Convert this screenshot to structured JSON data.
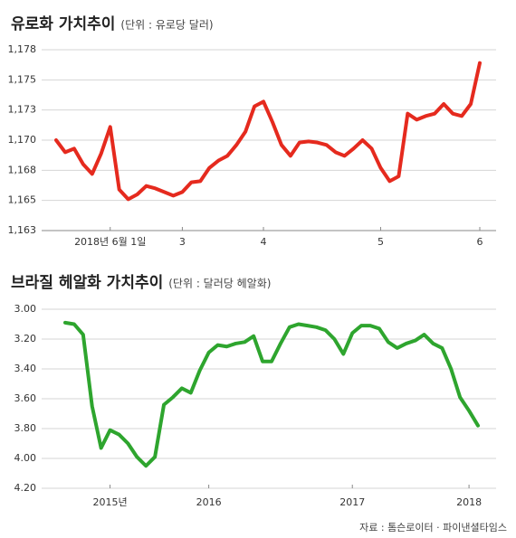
{
  "chart_data": [
    {
      "type": "line",
      "title": "유로화 가치추이",
      "subtitle": "(단위 : 유로당 달러)",
      "categories": [
        null,
        null,
        null,
        null,
        null,
        null,
        "2018년 6월 1일",
        null,
        null,
        null,
        null,
        null,
        null,
        null,
        "3",
        null,
        null,
        null,
        null,
        null,
        null,
        null,
        null,
        "4",
        null,
        null,
        null,
        null,
        null,
        null,
        null,
        null,
        null,
        null,
        null,
        null,
        "5",
        null,
        null,
        null,
        null,
        null,
        null,
        null,
        null,
        null,
        null,
        "6"
      ],
      "values": [
        1.17,
        1.169,
        1.1693,
        1.168,
        1.1672,
        1.1689,
        1.1711,
        1.1659,
        1.1651,
        1.1655,
        1.1662,
        1.166,
        1.1657,
        1.1654,
        1.1657,
        1.1665,
        1.1666,
        1.1677,
        1.1683,
        1.1687,
        1.1696,
        1.1707,
        1.1728,
        1.1732,
        1.1715,
        1.1696,
        1.1687,
        1.1698,
        1.1699,
        1.1698,
        1.1696,
        1.169,
        1.1687,
        1.1693,
        1.17,
        1.1693,
        1.1677,
        1.1666,
        1.167,
        1.1722,
        1.1717,
        1.172,
        1.1722,
        1.173,
        1.1722,
        1.172,
        1.173,
        1.1764
      ],
      "color": "#e52a1e",
      "ylim": [
        1.1625,
        1.1775
      ],
      "yticks": [
        {
          "value": 1.1625,
          "label": "1,163"
        },
        {
          "value": 1.165,
          "label": "1,165"
        },
        {
          "value": 1.1675,
          "label": "1,168"
        },
        {
          "value": 1.17,
          "label": "1,170"
        },
        {
          "value": 1.1725,
          "label": "1,173"
        },
        {
          "value": 1.175,
          "label": "1,175"
        },
        {
          "value": 1.1775,
          "label": "1,178"
        }
      ],
      "grid": true
    },
    {
      "type": "line",
      "title": "브라질 헤알화 가치추이",
      "subtitle": "(단위 : 달러당 헤알화)",
      "categories": [
        null,
        null,
        null,
        null,
        null,
        "2015년",
        null,
        null,
        null,
        null,
        null,
        null,
        null,
        null,
        null,
        null,
        "2016",
        null,
        null,
        null,
        null,
        null,
        null,
        null,
        null,
        null,
        null,
        null,
        null,
        null,
        null,
        null,
        "2017",
        null,
        null,
        null,
        null,
        null,
        null,
        null,
        null,
        null,
        null,
        null,
        null,
        "2018",
        null
      ],
      "values": [
        3.09,
        3.1,
        3.17,
        3.65,
        3.93,
        3.81,
        3.84,
        3.9,
        3.99,
        4.05,
        3.99,
        3.64,
        3.59,
        3.53,
        3.56,
        3.41,
        3.29,
        3.24,
        3.25,
        3.23,
        3.22,
        3.18,
        3.35,
        3.35,
        3.23,
        3.12,
        3.1,
        3.11,
        3.12,
        3.14,
        3.2,
        3.3,
        3.16,
        3.11,
        3.11,
        3.13,
        3.22,
        3.26,
        3.23,
        3.21,
        3.17,
        3.23,
        3.26,
        3.4,
        3.59,
        3.68,
        3.78
      ],
      "color": "#2ea52e",
      "ylim": [
        4.2,
        3.0
      ],
      "yticks": [
        {
          "value": 3.0,
          "label": "3.00"
        },
        {
          "value": 3.2,
          "label": "3.20"
        },
        {
          "value": 3.4,
          "label": "3.40"
        },
        {
          "value": 3.6,
          "label": "3.60"
        },
        {
          "value": 3.8,
          "label": "3.80"
        },
        {
          "value": 4.0,
          "label": "4.00"
        },
        {
          "value": 4.2,
          "label": "4.20"
        }
      ],
      "grid": true
    }
  ],
  "source": "자료 : 톰슨로이터 · 파이낸셜타임스"
}
